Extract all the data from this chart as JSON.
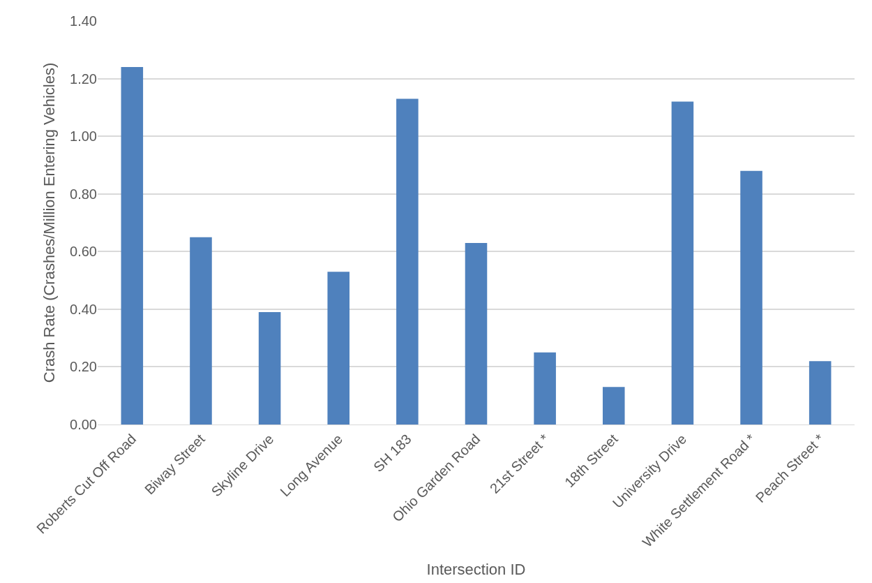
{
  "chart_data": {
    "type": "bar",
    "xlabel": "Intersection ID",
    "ylabel": "Crash Rate (Crashes/Million Entering Vehicles)",
    "categories": [
      "Roberts Cut Off Road",
      "Biway Street",
      "Skyline Drive",
      "Long Avenue",
      "SH 183",
      "Ohio Garden Road",
      "21st Street *",
      "18th Street",
      "University Drive",
      "White Settlement Road *",
      "Peach Street *"
    ],
    "values": [
      1.24,
      0.65,
      0.39,
      0.53,
      1.13,
      0.63,
      0.25,
      0.13,
      1.12,
      0.88,
      0.22
    ],
    "color": "#4f81bd",
    "ylim": [
      0,
      1.4
    ],
    "yticks": [
      {
        "value": 0,
        "label": "0.00"
      },
      {
        "value": 0.2,
        "label": "0.20"
      },
      {
        "value": 0.4,
        "label": "0.40"
      },
      {
        "value": 0.6,
        "label": "0.60"
      },
      {
        "value": 0.8,
        "label": "0.80"
      },
      {
        "value": 1.0,
        "label": "1.00"
      },
      {
        "value": 1.2,
        "label": "1.20"
      },
      {
        "value": 1.4,
        "label": "1.40"
      }
    ],
    "grid": "y"
  }
}
